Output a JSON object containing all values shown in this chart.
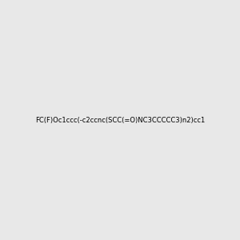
{
  "smiles": "FC(F)Oc1ccc(-c2ccnc(SCC(=O)NC3CCCCC3)n2)cc1",
  "image_size": 300,
  "background_color": "#e8e8e8",
  "bond_color": "#000000",
  "atom_colors": {
    "N": "#0000ff",
    "O": "#ff0000",
    "S": "#cccc00",
    "F": "#808000",
    "C": "#000000",
    "H": "#808080"
  }
}
